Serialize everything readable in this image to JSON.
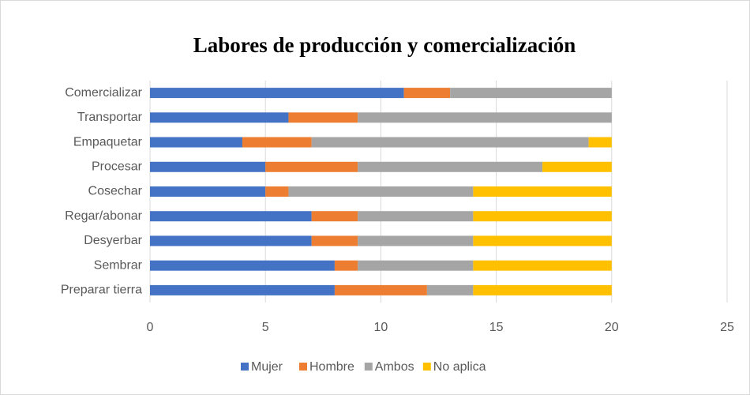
{
  "chart_data": {
    "type": "stacked_barh",
    "title": "Labores de producción y comercialización",
    "categories": [
      "Comercializar",
      "Transportar",
      "Empaquetar",
      "Procesar",
      "Cosechar",
      "Regar/abonar",
      "Desyerbar",
      "Sembrar",
      "Preparar tierra"
    ],
    "series": [
      {
        "name": "Mujer",
        "color": "#4472c4",
        "values": [
          11,
          6,
          4,
          5,
          5,
          7,
          7,
          8,
          8
        ]
      },
      {
        "name": "Hombre",
        "color": "#ed7d31",
        "values": [
          2,
          3,
          3,
          4,
          1,
          2,
          2,
          1,
          4
        ]
      },
      {
        "name": "Ambos",
        "color": "#a5a5a5",
        "values": [
          7,
          11,
          12,
          8,
          8,
          5,
          5,
          5,
          2
        ]
      },
      {
        "name": "No aplica",
        "color": "#ffc000",
        "values": [
          0,
          0,
          1,
          3,
          6,
          6,
          6,
          6,
          6
        ]
      }
    ],
    "xlim": [
      0,
      25
    ],
    "xticks": [
      0,
      5,
      10,
      15,
      20,
      25
    ],
    "grid": true,
    "legend": "bottom"
  }
}
